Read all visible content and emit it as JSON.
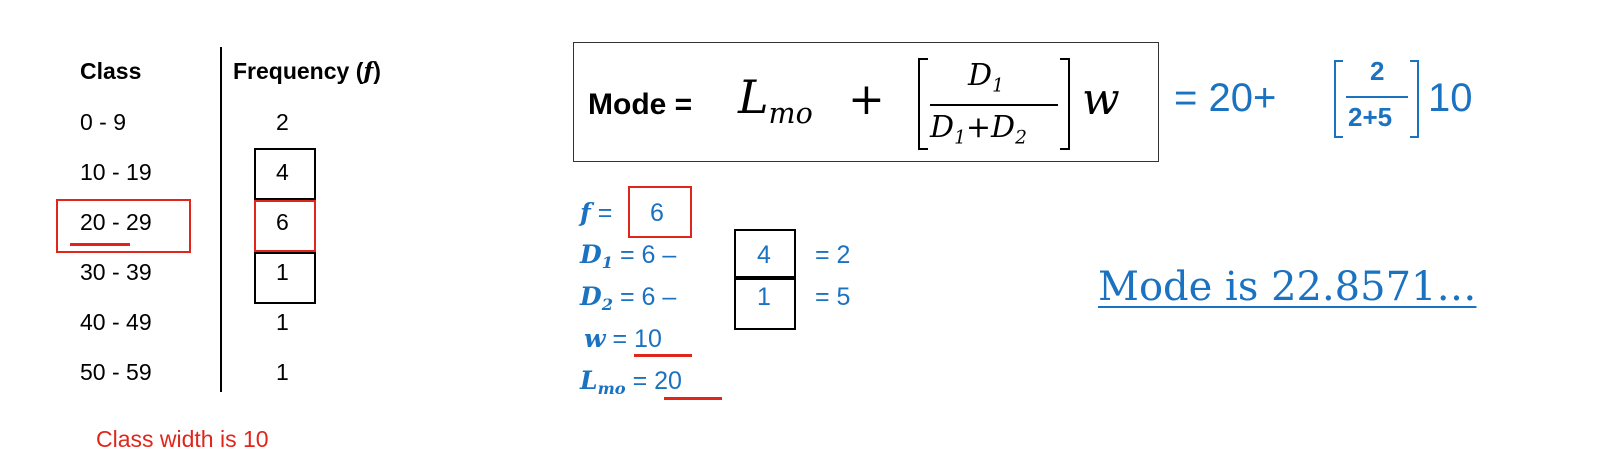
{
  "table": {
    "header_class": "Class",
    "header_freq": "Frequency (",
    "header_freq_var": "f",
    "header_freq_close": ")",
    "rows": [
      {
        "cls": "0 - 9",
        "freq": "2"
      },
      {
        "cls": "10 - 19",
        "freq": "4"
      },
      {
        "cls": "20 - 29",
        "freq": "6"
      },
      {
        "cls": "30 - 39",
        "freq": "1"
      },
      {
        "cls": "40 - 49",
        "freq": "1"
      },
      {
        "cls": "50 - 59",
        "freq": "1"
      }
    ],
    "class_width_note": "Class width is 10"
  },
  "formula": {
    "mode_label": "Mode =",
    "L": "L",
    "L_sub": "mo",
    "plus": "+",
    "num": "D",
    "num_sub": "1",
    "den_a": "D",
    "den_a_sub": "1",
    "den_plus": "+",
    "den_b": "D",
    "den_b_sub": "2",
    "w": "w"
  },
  "substitution": {
    "eq": "= 20+",
    "num": "2",
    "den": "2+5",
    "tail": "10"
  },
  "values": {
    "f_label": "f",
    "f_eq": "=",
    "f_val": "6",
    "d1_label": "D",
    "d1_sub": "1",
    "d1_expr": "= 6  –",
    "d1_box": "4",
    "d1_res": "= 2",
    "d2_label": "D",
    "d2_sub": "2",
    "d2_expr": "= 6  –",
    "d2_box": "1",
    "d2_res": "= 5",
    "w_label": "w",
    "w_eq": "=",
    "w_val": "10",
    "l_label": "L",
    "l_sub": "mo",
    "l_eq": "=",
    "l_val": "20"
  },
  "result": "Mode is 22.8571…",
  "colors": {
    "red": "#e0261b",
    "blue": "#1b72c0",
    "black": "#000000"
  }
}
